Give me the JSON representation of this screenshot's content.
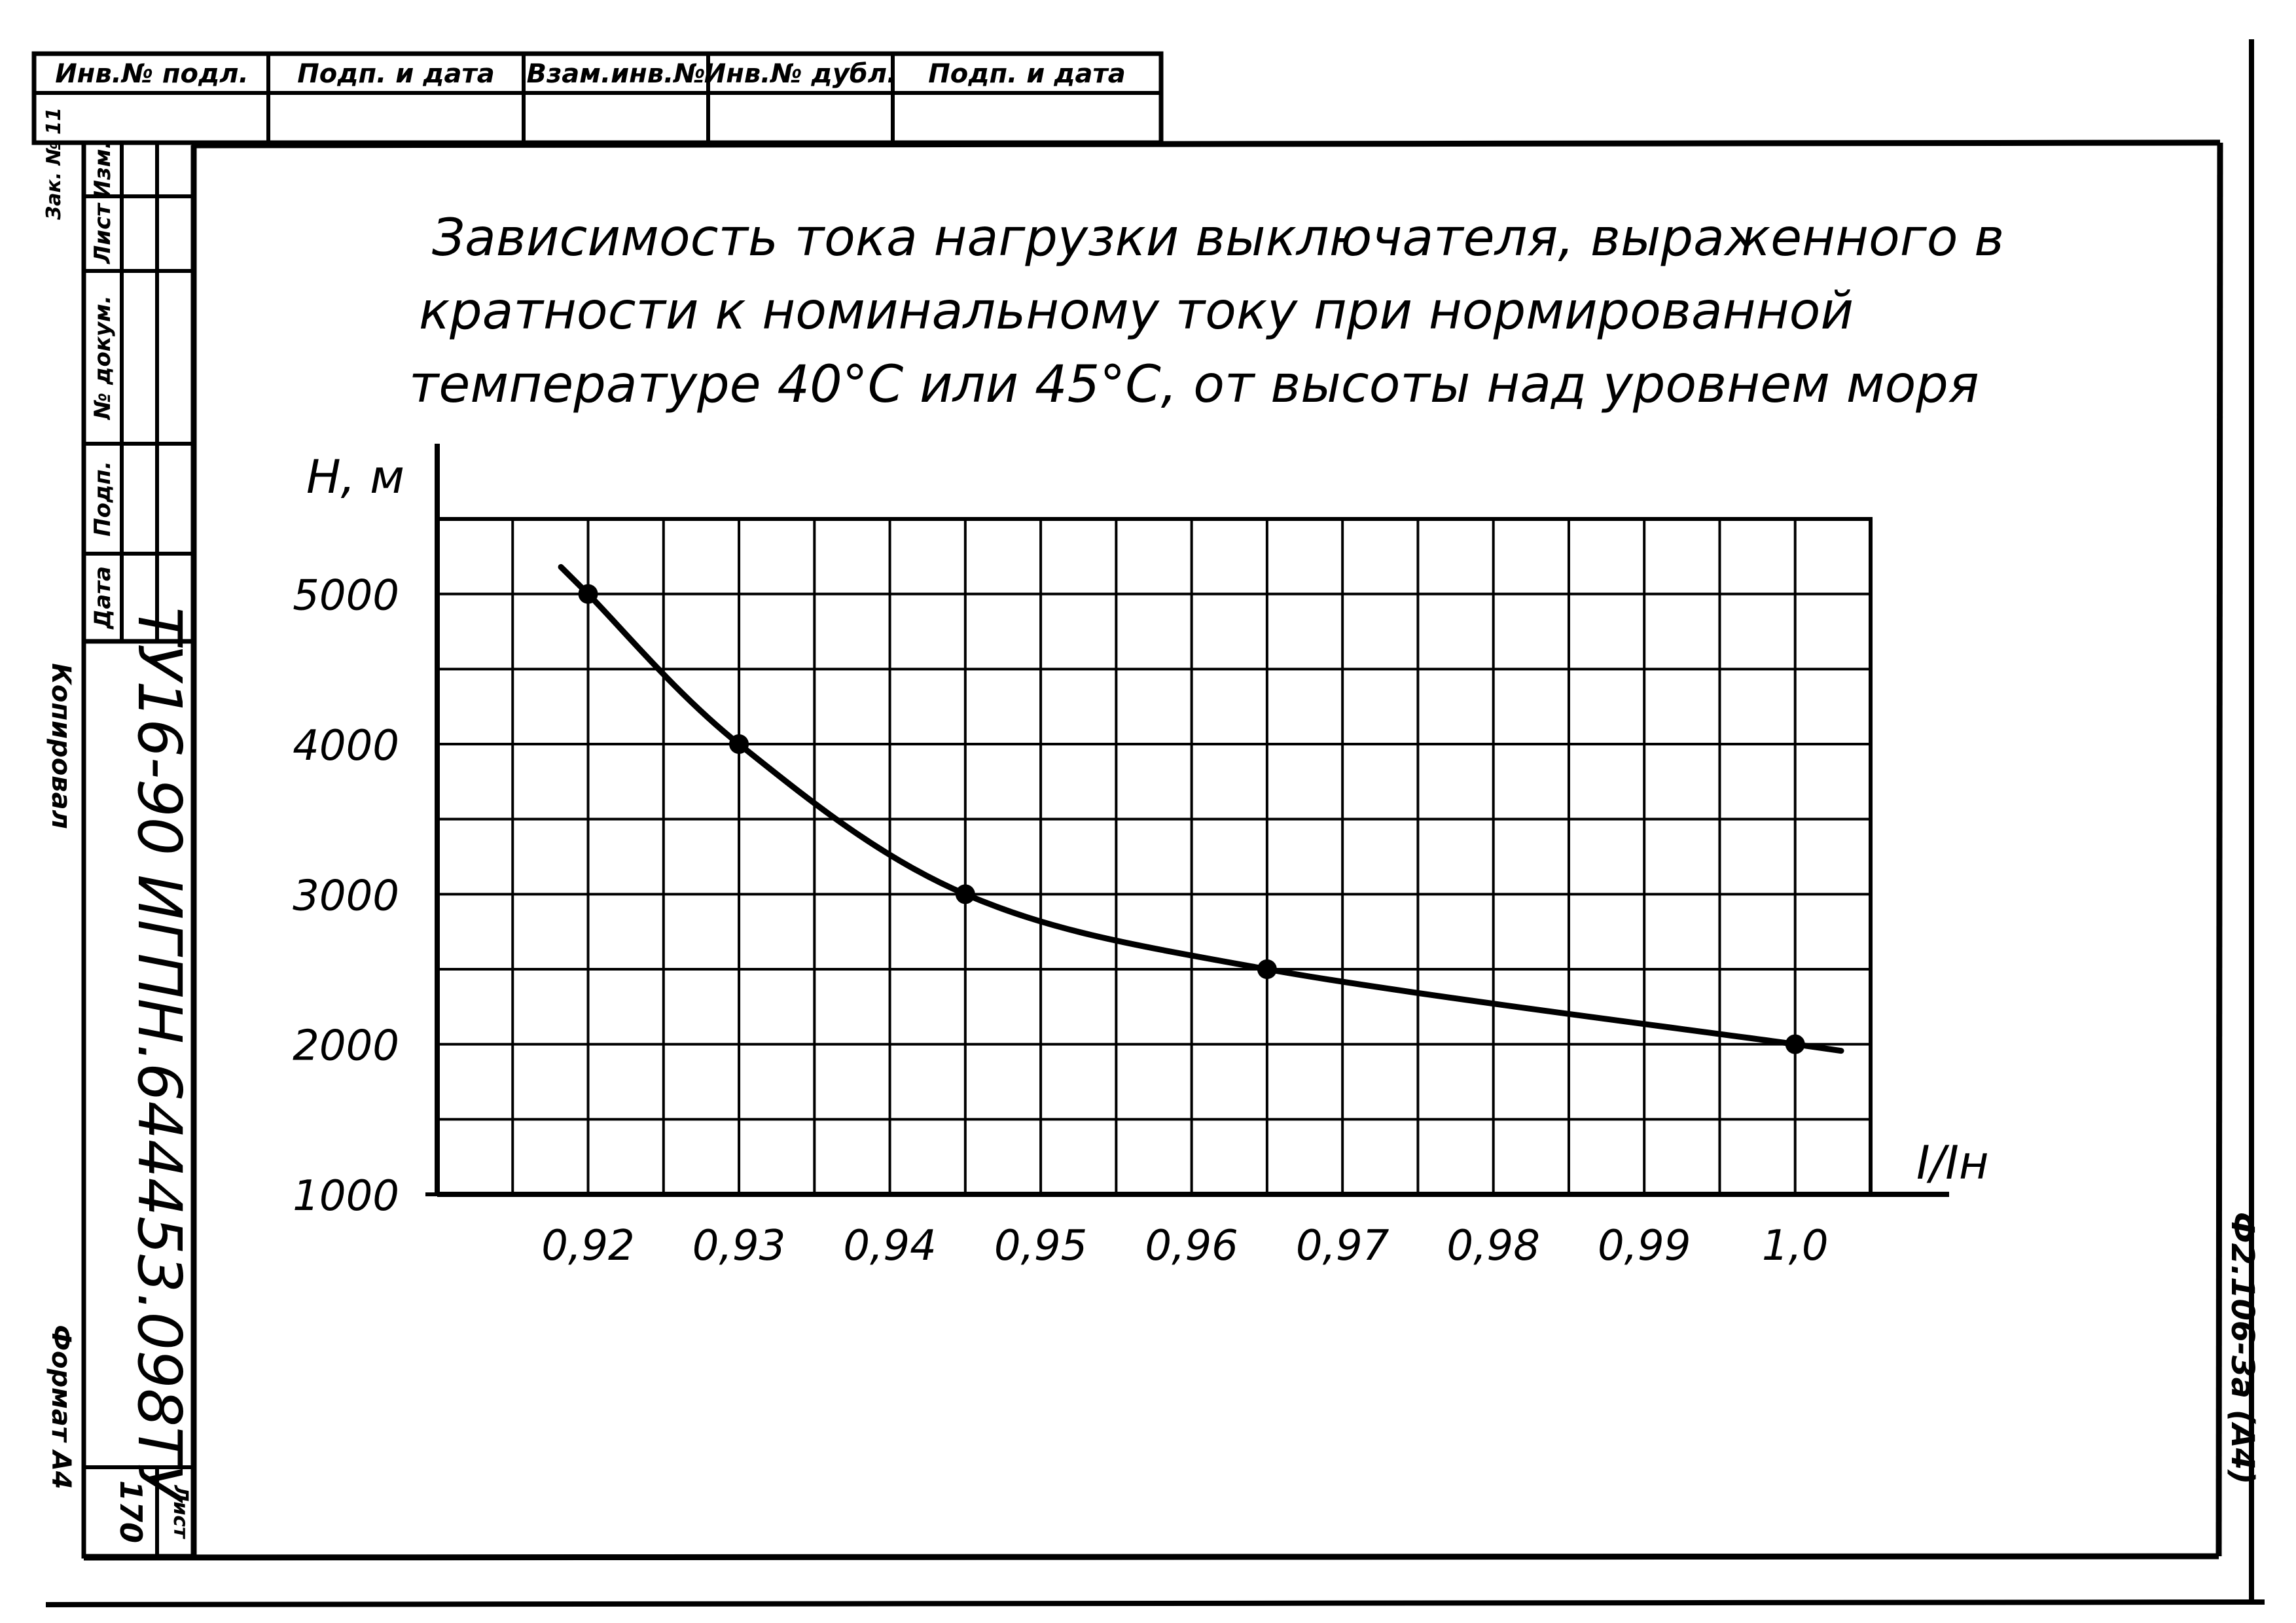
{
  "stamp": {
    "top_labels": [
      "Инв.№ подл.",
      "Подп. и дата",
      "Взам.инв.№",
      "Инв.№ дубл.",
      "Подп. и дата"
    ],
    "corner_label": "Зак. № 11",
    "side_labels": [
      "Изм.",
      "Лист",
      "№ докум.",
      "Подп.",
      "Дата"
    ],
    "sheet_label": "Лист",
    "sheet_number": "170"
  },
  "document_code": "ТУ16-90 ИГПН.644453.098ТУ",
  "margin_left": {
    "copied": "Копировал",
    "format": "Формат А4"
  },
  "form_code": "Ф2.106-3а (А4)",
  "chart_data": {
    "type": "line",
    "title": "Зависимость тока нагрузки выключателя, выраженного в кратности к номинальному току при нормированной температуре 40°С или 45°С, от высоты над уровнем моря",
    "title_lines": [
      "Зависимость тока нагрузки выключателя, выраженного в",
      "кратности к номинальному току при нормированной",
      "температуре 40°С или 45°С, от высоты над уровнем моря"
    ],
    "xlabel": "I/Iн",
    "ylabel": "Н, м",
    "xlim": [
      0.91,
      1.005
    ],
    "ylim": [
      1000,
      5500
    ],
    "x_ticks": [
      0.92,
      0.93,
      0.94,
      0.95,
      0.96,
      0.97,
      0.98,
      0.99,
      1.0
    ],
    "x_tick_labels": [
      "0,92",
      "0,93",
      "0,94",
      "0,95",
      "0,96",
      "0,97",
      "0,98",
      "0,99",
      "1,0"
    ],
    "y_ticks": [
      1000,
      2000,
      3000,
      4000,
      5000
    ],
    "y_tick_labels": [
      "1000",
      "2000",
      "3000",
      "4000",
      "5000"
    ],
    "grid": true,
    "series": [
      {
        "points": [
          {
            "x": 0.92,
            "y": 5000
          },
          {
            "x": 0.93,
            "y": 4000
          },
          {
            "x": 0.945,
            "y": 3000
          },
          {
            "x": 0.965,
            "y": 2500
          },
          {
            "x": 1.0,
            "y": 2000
          }
        ]
      }
    ]
  }
}
